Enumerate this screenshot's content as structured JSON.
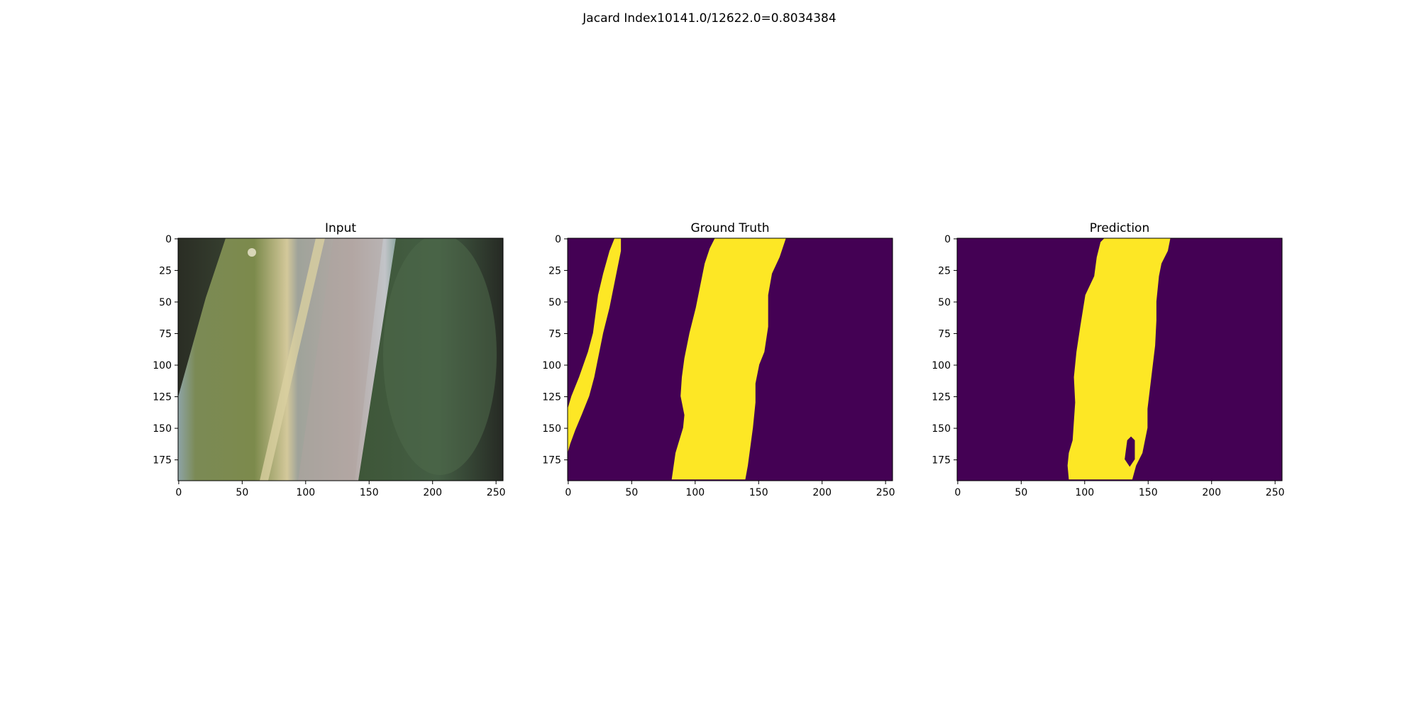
{
  "figure": {
    "suptitle": "Jacard Index10141.0/12622.0=0.8034384",
    "colors": {
      "background": "#440154",
      "mask": "#fde725"
    },
    "x_ticks": [
      "0",
      "50",
      "100",
      "150",
      "200",
      "250"
    ],
    "y_ticks": [
      "0",
      "25",
      "50",
      "75",
      "100",
      "125",
      "150",
      "175"
    ],
    "panels": [
      {
        "id": "input",
        "title": "Input",
        "kind": "photo"
      },
      {
        "id": "ground-truth",
        "title": "Ground Truth",
        "kind": "mask",
        "regions": [
          [
            [
              37,
              0
            ],
            [
              42,
              0
            ],
            [
              42,
              10
            ],
            [
              40,
              20
            ],
            [
              37,
              35
            ],
            [
              33,
              55
            ],
            [
              28,
              75
            ],
            [
              25,
              90
            ],
            [
              21,
              110
            ],
            [
              17,
              125
            ],
            [
              11,
              140
            ],
            [
              6,
              152
            ],
            [
              2,
              163
            ],
            [
              0,
              170
            ],
            [
              0,
              135
            ],
            [
              3,
              125
            ],
            [
              9,
              110
            ],
            [
              16,
              90
            ],
            [
              20,
              75
            ],
            [
              22,
              60
            ],
            [
              24,
              45
            ],
            [
              28,
              28
            ],
            [
              33,
              10
            ]
          ],
          [
            [
              116,
              0
            ],
            [
              172,
              0
            ],
            [
              167,
              15
            ],
            [
              161,
              28
            ],
            [
              158,
              45
            ],
            [
              158,
              70
            ],
            [
              155,
              90
            ],
            [
              151,
              100
            ],
            [
              148,
              115
            ],
            [
              148,
              130
            ],
            [
              146,
              150
            ],
            [
              144,
              165
            ],
            [
              142,
              180
            ],
            [
              140,
              191
            ],
            [
              82,
              191
            ],
            [
              85,
              170
            ],
            [
              91,
              150
            ],
            [
              92,
              140
            ],
            [
              89,
              125
            ],
            [
              90,
              110
            ],
            [
              92,
              95
            ],
            [
              96,
              75
            ],
            [
              101,
              55
            ],
            [
              104,
              40
            ],
            [
              108,
              20
            ],
            [
              112,
              8
            ]
          ]
        ]
      },
      {
        "id": "prediction",
        "title": "Prediction",
        "kind": "mask",
        "regions": [
          [
            [
              116,
              0
            ],
            [
              168,
              0
            ],
            [
              166,
              10
            ],
            [
              161,
              20
            ],
            [
              159,
              30
            ],
            [
              157,
              50
            ],
            [
              157,
              65
            ],
            [
              156,
              85
            ],
            [
              153,
              110
            ],
            [
              150,
              135
            ],
            [
              150,
              150
            ],
            [
              148,
              160
            ],
            [
              146,
              170
            ],
            [
              141,
              180
            ],
            [
              138,
              191
            ],
            [
              88,
              191
            ],
            [
              87,
              180
            ],
            [
              88,
              170
            ],
            [
              91,
              160
            ],
            [
              93,
              130
            ],
            [
              92,
              110
            ],
            [
              94,
              90
            ],
            [
              97,
              70
            ],
            [
              101,
              45
            ],
            [
              108,
              30
            ],
            [
              110,
              15
            ],
            [
              113,
              3
            ]
          ]
        ],
        "holes": [
          [
            [
              132,
              175
            ],
            [
              134,
              160
            ],
            [
              137,
              157
            ],
            [
              140,
              160
            ],
            [
              140,
              175
            ],
            [
              136,
              181
            ]
          ]
        ]
      }
    ]
  }
}
